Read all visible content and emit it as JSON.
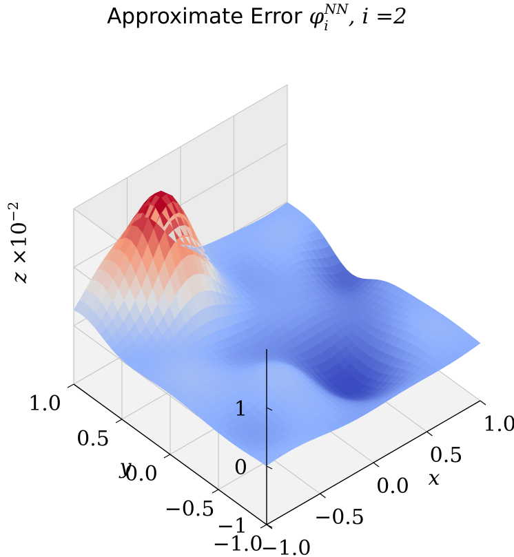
{
  "chart_data": {
    "type": "surface3d",
    "title": "Approximate Error φ_i^NN, i = 2",
    "title_text": "Approximate Error ",
    "title_symbol": "φ",
    "title_sub": "i",
    "title_sup": "NN",
    "title_suffix": ", i =2",
    "xlabel": "x",
    "ylabel": "y",
    "zlabel": "z ×10⁻²",
    "zlabel_var": "z",
    "zlabel_mult": "×10",
    "zlabel_exp": "−2",
    "xlim": [
      -1.0,
      1.0
    ],
    "ylim": [
      -1.0,
      1.0
    ],
    "zlim": [
      -1.0,
      2.0
    ],
    "x_ticks": [
      -1.0,
      -0.5,
      0.0,
      0.5,
      1.0
    ],
    "y_ticks": [
      -1.0,
      -0.5,
      0.0,
      0.5,
      1.0
    ],
    "z_ticks": [
      -1,
      0,
      1
    ],
    "x_tick_labels": [
      "−1.0",
      "−0.5",
      "0.0",
      "0.5",
      "1.0"
    ],
    "y_tick_labels": [
      "−1.0",
      "−0.5",
      "0.0",
      "0.5",
      "1.0"
    ],
    "z_tick_labels": [
      "−1",
      "0",
      "1"
    ],
    "colormap": "coolwarm",
    "colormap_stops": [
      "#3b4cc0",
      "#8db0fe",
      "#dddddd",
      "#f49a7b",
      "#b40426"
    ],
    "grid": true,
    "pane_color": "#f2f2f2",
    "surface": {
      "description": "error surface z(x,y) in units of 1e-2",
      "features": [
        {
          "kind": "peak",
          "x": -0.35,
          "y": 0.8,
          "z": 1.7
        },
        {
          "kind": "trough",
          "x": 0.2,
          "y": -0.35,
          "z": -0.6
        },
        {
          "kind": "ridge",
          "x": -0.75,
          "y": 0.9,
          "z": 0.6
        },
        {
          "kind": "edge_dip",
          "x": 0.95,
          "y": 0.35,
          "z": -0.45
        },
        {
          "kind": "edge_bump",
          "x": -0.2,
          "y": -0.3,
          "z": 0.35
        }
      ]
    }
  }
}
